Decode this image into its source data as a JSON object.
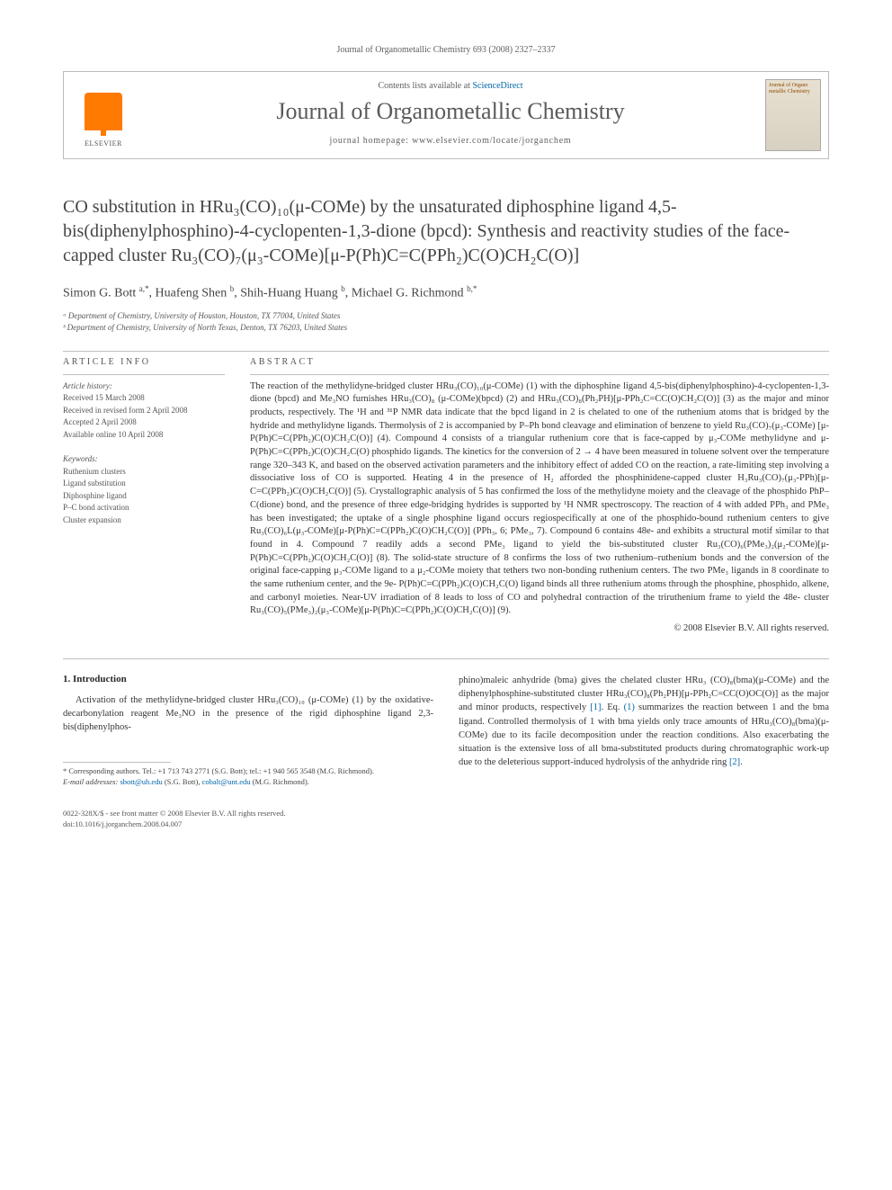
{
  "running_header": "Journal of Organometallic Chemistry 693 (2008) 2327–2337",
  "masthead": {
    "contents_prefix": "Contents lists available at ",
    "contents_link": "ScienceDirect",
    "journal_name": "Journal of Organometallic Chemistry",
    "homepage_label": "journal homepage: www.elsevier.com/locate/jorganchem",
    "publisher": "ELSEVIER",
    "cover_text": "Journal of Organo metallic Chemistry"
  },
  "title": "CO substitution in HRu₃(CO)₁₀(μ-COMe) by the unsaturated diphosphine ligand 4,5-bis(diphenylphosphino)-4-cyclopenten-1,3-dione (bpcd): Synthesis and reactivity studies of the face-capped cluster Ru₃(CO)₇(μ₃-COMe)[μ-P(Ph)C=C(PPh₂)C(O)CH₂C(O)]",
  "authors_html": "Simon G. Bott <sup>a,*</sup>, Huafeng Shen <sup>b</sup>, Shih-Huang Huang <sup>b</sup>, Michael G. Richmond <sup>b,*</sup>",
  "affiliations": [
    "ᵃ Department of Chemistry, University of Houston, Houston, TX 77004, United States",
    "ᵇ Department of Chemistry, University of North Texas, Denton, TX 76203, United States"
  ],
  "info": {
    "label": "ARTICLE INFO",
    "history_label": "Article history:",
    "history": [
      "Received 15 March 2008",
      "Received in revised form 2 April 2008",
      "Accepted 2 April 2008",
      "Available online 10 April 2008"
    ],
    "keywords_label": "Keywords:",
    "keywords": [
      "Ruthenium clusters",
      "Ligand substitution",
      "Diphosphine ligand",
      "P–C bond activation",
      "Cluster expansion"
    ]
  },
  "abstract": {
    "label": "ABSTRACT",
    "text": "The reaction of the methylidyne-bridged cluster HRu₃(CO)₁₀(μ-COMe) (1) with the diphosphine ligand 4,5-bis(diphenylphosphino)-4-cyclopenten-1,3-dione (bpcd) and Me₃NO furnishes HRu₃(CO)₈ (μ-COMe)(bpcd) (2) and HRu₃(CO)₈(Ph₂PH)[μ-PPh₂C=CC(O)CH₂C(O)] (3) as the major and minor products, respectively. The ¹H and ³¹P NMR data indicate that the bpcd ligand in 2 is chelated to one of the ruthenium atoms that is bridged by the hydride and methylidyne ligands. Thermolysis of 2 is accompanied by P–Ph bond cleavage and elimination of benzene to yield Ru₃(CO)₇(μ₃-COMe) [μ-P(Ph)C=C(PPh₂)C(O)CH₂C(O)] (4). Compound 4 consists of a triangular ruthenium core that is face-capped by μ₃-COMe methylidyne and μ-P(Ph)C=C(PPh₂)C(O)CH₂C(O) phosphido ligands. The kinetics for the conversion of 2 → 4 have been measured in toluene solvent over the temperature range 320–343 K, and based on the observed activation parameters and the inhibitory effect of added CO on the reaction, a rate-limiting step involving a dissociative loss of CO is supported. Heating 4 in the presence of H₂ afforded the phosphinidene-capped cluster H₃Ru₃(CO)₇(μ₃-PPh)[μ-C=C(PPh₂)C(O)CH₂C(O)] (5). Crystallographic analysis of 5 has confirmed the loss of the methylidyne moiety and the cleavage of the phosphido PhP–C(dione) bond, and the presence of three edge-bridging hydrides is supported by ¹H NMR spectroscopy. The reaction of 4 with added PPh₃ and PMe₃ has been investigated; the uptake of a single phosphine ligand occurs regiospecifically at one of the phosphido-bound ruthenium centers to give Ru₃(CO)₆L(μ₃-COMe)[μ-P(Ph)C=C(PPh₂)C(O)CH₂C(O)] (PPh₃, 6; PMe₃, 7). Compound 6 contains 48e- and exhibits a structural motif similar to that found in 4. Compound 7 readily adds a second PMe₃ ligand to yield the bis-substituted cluster Ru₃(CO)₆(PMe₃)₂(μ₂-COMe)[μ-P(Ph)C=C(PPh₂)C(O)CH₂C(O)] (8). The solid-state structure of 8 confirms the loss of two ruthenium–ruthenium bonds and the conversion of the original face-capping μ₃-COMe ligand to a μ₂-COMe moiety that tethers two non-bonding ruthenium centers. The two PMe₃ ligands in 8 coordinate to the same ruthenium center, and the 9e- P(Ph)C=C(PPh₂)C(O)CH₂C(O) ligand binds all three ruthenium atoms through the phosphine, phosphido, alkene, and carbonyl moieties. Near-UV irradiation of 8 leads to loss of CO and polyhedral contraction of the triruthenium frame to yield the 48e- cluster Ru₃(CO)₅(PMe₃)₂(μ₃-COMe)[μ-P(Ph)C=C(PPh₂)C(O)CH₂C(O)] (9).",
    "copyright": "© 2008 Elsevier B.V. All rights reserved."
  },
  "body": {
    "heading": "1. Introduction",
    "left": "Activation of the methylidyne-bridged cluster HRu₃(CO)₁₀ (μ-COMe) (1) by the oxidative-decarbonylation reagent Me₃NO in the presence of the rigid diphosphine ligand 2,3-bis(diphenylphos-",
    "right": "phino)maleic anhydride (bma) gives the chelated cluster HRu₃ (CO)₈(bma)(μ-COMe) and the diphenylphosphine-substituted cluster HRu₃(CO)₈(Ph₂PH)[μ-PPh₂C=CC(O)OC(O)] as the major and minor products, respectively [1]. Eq. (1) summarizes the reaction between 1 and the bma ligand. Controlled thermolysis of 1 with bma yields only trace amounts of HRu₃(CO)₈(bma)(μ-COMe) due to its facile decomposition under the reaction conditions. Also exacerbating the situation is the extensive loss of all bma-substituted products during chromatographic work-up due to the deleterious support-induced hydrolysis of the anhydride ring [2]."
  },
  "footnotes": {
    "corresponding": "* Corresponding authors. Tel.: +1 713 743 2771 (S.G. Bott); tel.: +1 940 565 3548 (M.G. Richmond).",
    "email_label": "E-mail addresses:",
    "email1": "sbott@uh.edu",
    "email1_paren": " (S.G. Bott), ",
    "email2": "cobalt@unt.edu",
    "email2_paren": " (M.G. Richmond)."
  },
  "bottom": {
    "line1": "0022-328X/$ - see front matter © 2008 Elsevier B.V. All rights reserved.",
    "line2": "doi:10.1016/j.jorganchem.2008.04.007"
  },
  "colors": {
    "link": "#0066aa",
    "rule": "#bfbfbf",
    "text": "#343434",
    "elsevier_orange": "#ff7a00"
  }
}
